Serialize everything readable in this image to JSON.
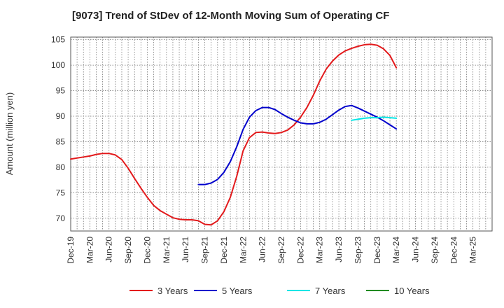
{
  "chart_data": {
    "type": "line",
    "title": "[9073]  Trend of StDev of 12-Month Moving Sum of Operating CF",
    "xlabel": "",
    "ylabel": "Amount (million yen)",
    "ylim": [
      67.5,
      105.5
    ],
    "y_ticks": [
      70,
      75,
      80,
      85,
      90,
      95,
      100,
      105
    ],
    "x_tick_labels": [
      "Dec-19",
      "Mar-20",
      "Jun-20",
      "Sep-20",
      "Dec-20",
      "Mar-21",
      "Jun-21",
      "Sep-21",
      "Dec-21",
      "Mar-22",
      "Jun-22",
      "Sep-22",
      "Dec-22",
      "Mar-23",
      "Jun-23",
      "Sep-23",
      "Dec-23",
      "Mar-24",
      "Jun-24",
      "Sep-24",
      "Dec-24",
      "Mar-25"
    ],
    "grid": true,
    "legend_position": "bottom",
    "series": [
      {
        "name": "3 Years",
        "color": "#e31a1c",
        "values": [
          81.6,
          81.8,
          82.0,
          82.2,
          82.5,
          82.7,
          82.7,
          82.4,
          81.5,
          79.8,
          77.8,
          75.9,
          74.1,
          72.5,
          71.5,
          70.8,
          70.1,
          69.8,
          69.7,
          69.7,
          69.5,
          68.8,
          68.7,
          69.5,
          71.3,
          74.1,
          78.2,
          83.2,
          85.8,
          86.8,
          86.9,
          86.7,
          86.6,
          86.8,
          87.3,
          88.3,
          89.8,
          91.7,
          94.1,
          96.9,
          99.2,
          100.8,
          102.0,
          102.8,
          103.3,
          103.7,
          104.0,
          104.1,
          103.9,
          103.2,
          101.9,
          99.5,
          null,
          null,
          null,
          null,
          null,
          null,
          null,
          null,
          null,
          null,
          null,
          null,
          null,
          null
        ]
      },
      {
        "name": "5 Years",
        "color": "#0000cc",
        "values": [
          null,
          null,
          null,
          null,
          null,
          null,
          null,
          null,
          null,
          null,
          null,
          null,
          null,
          null,
          null,
          null,
          null,
          null,
          null,
          null,
          76.6,
          76.6,
          76.9,
          77.6,
          79.0,
          81.1,
          84.0,
          87.4,
          89.8,
          91.1,
          91.7,
          91.7,
          91.3,
          90.5,
          89.8,
          89.2,
          88.7,
          88.5,
          88.5,
          88.8,
          89.4,
          90.3,
          91.2,
          91.9,
          92.1,
          91.6,
          91.0,
          90.4,
          89.8,
          89.1,
          88.3,
          87.5,
          null,
          null,
          null,
          null,
          null,
          null,
          null,
          null,
          null,
          null,
          null,
          null,
          null,
          null
        ]
      },
      {
        "name": "7 Years",
        "color": "#00e5e5",
        "values": [
          null,
          null,
          null,
          null,
          null,
          null,
          null,
          null,
          null,
          null,
          null,
          null,
          null,
          null,
          null,
          null,
          null,
          null,
          null,
          null,
          null,
          null,
          null,
          null,
          null,
          null,
          null,
          null,
          null,
          null,
          null,
          null,
          null,
          null,
          null,
          null,
          null,
          null,
          null,
          null,
          null,
          null,
          null,
          null,
          89.2,
          89.4,
          89.6,
          89.7,
          89.7,
          89.8,
          89.7,
          89.6,
          null,
          null,
          null,
          null,
          null,
          null,
          null,
          null,
          null,
          null,
          null,
          null,
          null,
          null
        ]
      },
      {
        "name": "10 Years",
        "color": "#228b22",
        "values": []
      }
    ]
  }
}
